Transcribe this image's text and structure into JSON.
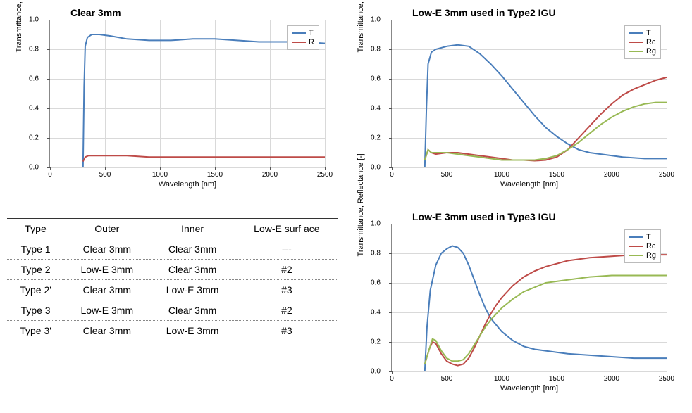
{
  "charts": {
    "clear": {
      "title": "Clear 3mm",
      "xlabel": "Wavelength [nm]",
      "ylabel": "Transmittance, Reflectance [-]",
      "xlim": [
        0,
        2500
      ],
      "ylim": [
        0,
        1.0
      ],
      "xticks": [
        0,
        500,
        1000,
        1500,
        2000,
        2500
      ],
      "yticks": [
        0.0,
        0.2,
        0.4,
        0.6,
        0.8,
        1.0
      ],
      "grid_color": "#d9d9d9",
      "series": [
        {
          "name": "T",
          "color": "#4a7ebb",
          "width": 2,
          "points": [
            [
              300,
              0.0
            ],
            [
              310,
              0.55
            ],
            [
              320,
              0.82
            ],
            [
              340,
              0.88
            ],
            [
              380,
              0.9
            ],
            [
              450,
              0.9
            ],
            [
              550,
              0.89
            ],
            [
              700,
              0.87
            ],
            [
              900,
              0.86
            ],
            [
              1100,
              0.86
            ],
            [
              1300,
              0.87
            ],
            [
              1500,
              0.87
            ],
            [
              1700,
              0.86
            ],
            [
              1900,
              0.85
            ],
            [
              2100,
              0.85
            ],
            [
              2300,
              0.85
            ],
            [
              2500,
              0.84
            ]
          ]
        },
        {
          "name": "R",
          "color": "#be4b48",
          "width": 2,
          "points": [
            [
              300,
              0.04
            ],
            [
              320,
              0.07
            ],
            [
              350,
              0.08
            ],
            [
              400,
              0.08
            ],
            [
              500,
              0.08
            ],
            [
              700,
              0.08
            ],
            [
              900,
              0.07
            ],
            [
              1200,
              0.07
            ],
            [
              1500,
              0.07
            ],
            [
              1800,
              0.07
            ],
            [
              2100,
              0.07
            ],
            [
              2500,
              0.07
            ]
          ]
        }
      ],
      "legend_labels": [
        "T",
        "R"
      ]
    },
    "type2": {
      "title": "Low-E 3mm used in Type2 IGU",
      "xlabel": "Wavelength [nm]",
      "ylabel": "Transmittance, Reflectance [-]",
      "xlim": [
        0,
        2500
      ],
      "ylim": [
        0,
        1.0
      ],
      "xticks": [
        0,
        500,
        1000,
        1500,
        2000,
        2500
      ],
      "yticks": [
        0.0,
        0.2,
        0.4,
        0.6,
        0.8,
        1.0
      ],
      "grid_color": "#d9d9d9",
      "series": [
        {
          "name": "T",
          "color": "#4a7ebb",
          "width": 2,
          "points": [
            [
              300,
              0.0
            ],
            [
              315,
              0.4
            ],
            [
              330,
              0.7
            ],
            [
              360,
              0.78
            ],
            [
              400,
              0.8
            ],
            [
              500,
              0.82
            ],
            [
              600,
              0.83
            ],
            [
              700,
              0.82
            ],
            [
              800,
              0.77
            ],
            [
              900,
              0.7
            ],
            [
              1000,
              0.62
            ],
            [
              1100,
              0.53
            ],
            [
              1200,
              0.44
            ],
            [
              1300,
              0.35
            ],
            [
              1400,
              0.27
            ],
            [
              1500,
              0.21
            ],
            [
              1600,
              0.16
            ],
            [
              1700,
              0.12
            ],
            [
              1800,
              0.1
            ],
            [
              1900,
              0.09
            ],
            [
              2100,
              0.07
            ],
            [
              2300,
              0.06
            ],
            [
              2500,
              0.06
            ]
          ]
        },
        {
          "name": "Rc",
          "color": "#be4b48",
          "width": 2,
          "points": [
            [
              300,
              0.05
            ],
            [
              330,
              0.12
            ],
            [
              360,
              0.1
            ],
            [
              400,
              0.09
            ],
            [
              500,
              0.1
            ],
            [
              600,
              0.1
            ],
            [
              700,
              0.09
            ],
            [
              800,
              0.08
            ],
            [
              900,
              0.07
            ],
            [
              1000,
              0.06
            ],
            [
              1100,
              0.05
            ],
            [
              1200,
              0.05
            ],
            [
              1300,
              0.045
            ],
            [
              1400,
              0.05
            ],
            [
              1500,
              0.07
            ],
            [
              1600,
              0.12
            ],
            [
              1700,
              0.2
            ],
            [
              1800,
              0.28
            ],
            [
              1900,
              0.36
            ],
            [
              2000,
              0.43
            ],
            [
              2100,
              0.49
            ],
            [
              2200,
              0.53
            ],
            [
              2300,
              0.56
            ],
            [
              2400,
              0.59
            ],
            [
              2500,
              0.61
            ]
          ]
        },
        {
          "name": "Rg",
          "color": "#98b954",
          "width": 2,
          "points": [
            [
              300,
              0.05
            ],
            [
              330,
              0.12
            ],
            [
              360,
              0.1
            ],
            [
              400,
              0.1
            ],
            [
              500,
              0.1
            ],
            [
              600,
              0.09
            ],
            [
              700,
              0.08
            ],
            [
              800,
              0.07
            ],
            [
              900,
              0.06
            ],
            [
              1000,
              0.05
            ],
            [
              1100,
              0.05
            ],
            [
              1200,
              0.05
            ],
            [
              1300,
              0.05
            ],
            [
              1400,
              0.06
            ],
            [
              1500,
              0.08
            ],
            [
              1600,
              0.12
            ],
            [
              1700,
              0.17
            ],
            [
              1800,
              0.23
            ],
            [
              1900,
              0.29
            ],
            [
              2000,
              0.34
            ],
            [
              2100,
              0.38
            ],
            [
              2200,
              0.41
            ],
            [
              2300,
              0.43
            ],
            [
              2400,
              0.44
            ],
            [
              2500,
              0.44
            ]
          ]
        }
      ],
      "legend_labels": [
        "T",
        "Rc",
        "Rg"
      ]
    },
    "type3": {
      "title": "Low-E 3mm used in Type3 IGU",
      "xlabel": "Wavelength [nm]",
      "ylabel": "Transmittance, Reflectance [-]",
      "xlim": [
        0,
        2500
      ],
      "ylim": [
        0,
        1.0
      ],
      "xticks": [
        0,
        500,
        1000,
        1500,
        2000,
        2500
      ],
      "yticks": [
        0.0,
        0.2,
        0.4,
        0.6,
        0.8,
        1.0
      ],
      "grid_color": "#d9d9d9",
      "series": [
        {
          "name": "T",
          "color": "#4a7ebb",
          "width": 2,
          "points": [
            [
              300,
              0.0
            ],
            [
              320,
              0.3
            ],
            [
              350,
              0.55
            ],
            [
              400,
              0.72
            ],
            [
              450,
              0.8
            ],
            [
              500,
              0.83
            ],
            [
              550,
              0.85
            ],
            [
              600,
              0.84
            ],
            [
              650,
              0.8
            ],
            [
              700,
              0.72
            ],
            [
              750,
              0.62
            ],
            [
              800,
              0.52
            ],
            [
              850,
              0.43
            ],
            [
              900,
              0.36
            ],
            [
              1000,
              0.27
            ],
            [
              1100,
              0.21
            ],
            [
              1200,
              0.17
            ],
            [
              1300,
              0.15
            ],
            [
              1400,
              0.14
            ],
            [
              1500,
              0.13
            ],
            [
              1600,
              0.12
            ],
            [
              1800,
              0.11
            ],
            [
              2000,
              0.1
            ],
            [
              2200,
              0.09
            ],
            [
              2500,
              0.09
            ]
          ]
        },
        {
          "name": "Rc",
          "color": "#be4b48",
          "width": 2,
          "points": [
            [
              300,
              0.05
            ],
            [
              340,
              0.15
            ],
            [
              370,
              0.2
            ],
            [
              400,
              0.19
            ],
            [
              450,
              0.12
            ],
            [
              500,
              0.07
            ],
            [
              550,
              0.05
            ],
            [
              600,
              0.04
            ],
            [
              650,
              0.05
            ],
            [
              700,
              0.09
            ],
            [
              750,
              0.16
            ],
            [
              800,
              0.24
            ],
            [
              850,
              0.32
            ],
            [
              900,
              0.39
            ],
            [
              950,
              0.45
            ],
            [
              1000,
              0.5
            ],
            [
              1100,
              0.58
            ],
            [
              1200,
              0.64
            ],
            [
              1300,
              0.68
            ],
            [
              1400,
              0.71
            ],
            [
              1500,
              0.73
            ],
            [
              1600,
              0.75
            ],
            [
              1800,
              0.77
            ],
            [
              2000,
              0.78
            ],
            [
              2200,
              0.79
            ],
            [
              2500,
              0.79
            ]
          ]
        },
        {
          "name": "Rg",
          "color": "#98b954",
          "width": 2,
          "points": [
            [
              300,
              0.05
            ],
            [
              340,
              0.15
            ],
            [
              370,
              0.22
            ],
            [
              400,
              0.21
            ],
            [
              450,
              0.14
            ],
            [
              500,
              0.09
            ],
            [
              550,
              0.07
            ],
            [
              600,
              0.07
            ],
            [
              650,
              0.08
            ],
            [
              700,
              0.12
            ],
            [
              750,
              0.18
            ],
            [
              800,
              0.24
            ],
            [
              850,
              0.3
            ],
            [
              900,
              0.35
            ],
            [
              950,
              0.39
            ],
            [
              1000,
              0.43
            ],
            [
              1100,
              0.49
            ],
            [
              1200,
              0.54
            ],
            [
              1300,
              0.57
            ],
            [
              1400,
              0.6
            ],
            [
              1500,
              0.61
            ],
            [
              1600,
              0.62
            ],
            [
              1800,
              0.64
            ],
            [
              2000,
              0.65
            ],
            [
              2200,
              0.65
            ],
            [
              2500,
              0.65
            ]
          ]
        }
      ],
      "legend_labels": [
        "T",
        "Rc",
        "Rg"
      ]
    }
  },
  "table": {
    "columns": [
      "Type",
      "Outer",
      "Inner",
      "Low-E surf ace"
    ],
    "rows": [
      [
        "Type 1",
        "Clear 3mm",
        "Clear 3mm",
        "---"
      ],
      [
        "Type 2",
        "Low-E 3mm",
        "Clear 3mm",
        "#2"
      ],
      [
        "Type 2'",
        "Clear 3mm",
        "Low-E 3mm",
        "#3"
      ],
      [
        "Type 3",
        "Low-E 3mm",
        "Clear 3mm",
        "#2"
      ],
      [
        "Type 3'",
        "Clear 3mm",
        "Low-E 3mm",
        "#3"
      ]
    ]
  }
}
